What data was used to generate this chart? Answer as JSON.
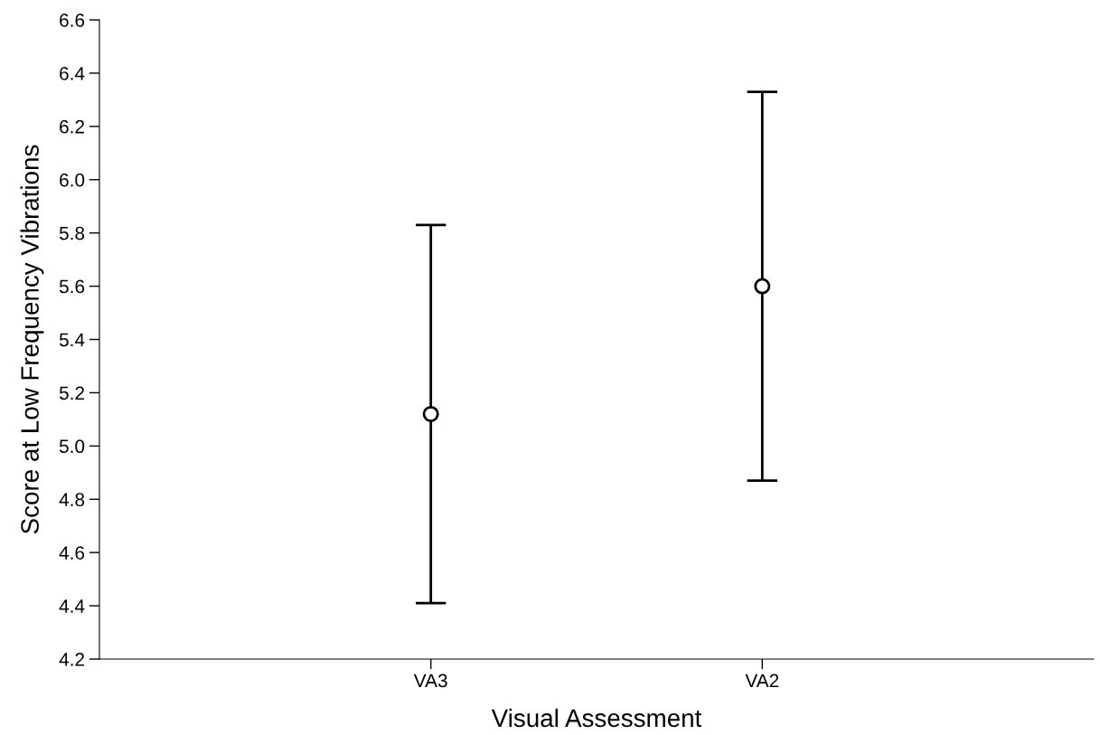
{
  "chart_data": {
    "type": "scatter",
    "xlabel": "Visual Assessment",
    "ylabel": "Score at Low Frequency Vibrations",
    "categories": [
      "VA3",
      "VA2"
    ],
    "series": [
      {
        "color": "#000000",
        "values": [
          5.12,
          5.6
        ],
        "errors": [
          0.71,
          0.73
        ]
      }
    ],
    "marker": "circle",
    "ylim": [
      4.2,
      6.6
    ],
    "yticks": [
      4.2,
      4.4,
      4.6,
      4.8,
      {
        "value": 5,
        "label": "5.0"
      },
      5.2,
      5.4,
      5.6,
      5.8,
      {
        "value": 6,
        "label": "6.0"
      },
      6.2,
      6.4,
      6.6
    ],
    "grid": false,
    "legend": false
  }
}
